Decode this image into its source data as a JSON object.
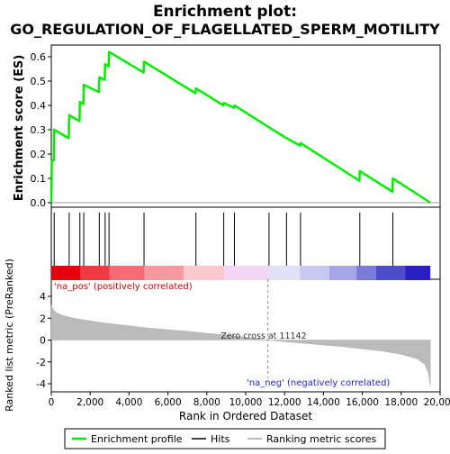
{
  "chart_data": {
    "type": "line",
    "title_line1": "Enrichment plot:",
    "title_line2": "GO_REGULATION_OF_FLAGELLATED_SPERM_MOTILITY",
    "xlabel": "Rank in Ordered Dataset",
    "ylabel_top": "Enrichment score (ES)",
    "ylabel_bottom": "Ranked list metric (PreRanked)",
    "xlim": [
      0,
      20000
    ],
    "x_ticks": [
      0,
      2000,
      4000,
      6000,
      8000,
      10000,
      12000,
      14000,
      16000,
      18000,
      20000
    ],
    "x_tick_labels": [
      "0",
      "2,000",
      "4,000",
      "6,000",
      "8,000",
      "10,000",
      "12,000",
      "14,000",
      "16,000",
      "18,000",
      "20,000"
    ],
    "es_ylim": [
      0,
      0.6
    ],
    "es_ticks": [
      0.0,
      0.1,
      0.2,
      0.3,
      0.4,
      0.5,
      0.6
    ],
    "es_tick_labels": [
      "0.0",
      "0.1",
      "0.2",
      "0.3",
      "0.4",
      "0.5",
      "0.6"
    ],
    "metric_ylim": [
      -4.5,
      5
    ],
    "metric_ticks": [
      -4,
      -2,
      0,
      2,
      4
    ],
    "metric_tick_labels": [
      "-4",
      "-2",
      "0",
      "2",
      "4"
    ],
    "series": [
      {
        "name": "Enrichment profile",
        "color": "#00ee00",
        "points": [
          [
            0,
            0.0
          ],
          [
            30,
            0.17
          ],
          [
            130,
            0.175
          ],
          [
            150,
            0.3
          ],
          [
            900,
            0.265
          ],
          [
            920,
            0.36
          ],
          [
            1450,
            0.335
          ],
          [
            1470,
            0.415
          ],
          [
            1650,
            0.405
          ],
          [
            1670,
            0.485
          ],
          [
            2450,
            0.455
          ],
          [
            2470,
            0.515
          ],
          [
            2750,
            0.505
          ],
          [
            2770,
            0.57
          ],
          [
            2950,
            0.56
          ],
          [
            2970,
            0.62
          ],
          [
            4750,
            0.535
          ],
          [
            4770,
            0.58
          ],
          [
            7420,
            0.45
          ],
          [
            7440,
            0.47
          ],
          [
            8850,
            0.4
          ],
          [
            8870,
            0.41
          ],
          [
            9400,
            0.39
          ],
          [
            9420,
            0.4
          ],
          [
            11200,
            0.31
          ],
          [
            12100,
            0.265
          ],
          [
            12800,
            0.235
          ],
          [
            12820,
            0.245
          ],
          [
            15850,
            0.09
          ],
          [
            15870,
            0.13
          ],
          [
            17550,
            0.045
          ],
          [
            17570,
            0.1
          ],
          [
            19500,
            0.0
          ]
        ]
      }
    ],
    "hits": [
      150,
      920,
      1470,
      1670,
      2470,
      2770,
      2970,
      4770,
      7440,
      8870,
      9420,
      11200,
      12100,
      12820,
      15870,
      17570
    ],
    "heatmap_colors": [
      "#e8000e",
      "#ef3a44",
      "#f36c74",
      "#f7999f",
      "#fbc9cd",
      "#f4d4f4",
      "#e0e0f6",
      "#c8c8f0",
      "#a5a5e8",
      "#7a7ad9",
      "#4d4dc9",
      "#2a1fc0"
    ],
    "heatmap_breaks": [
      0,
      1500,
      3000,
      4800,
      6800,
      8900,
      11142,
      12800,
      14300,
      15700,
      16700,
      18200,
      19500
    ],
    "metric_curve": [
      [
        0,
        3.2
      ],
      [
        100,
        2.8
      ],
      [
        300,
        2.45
      ],
      [
        600,
        2.25
      ],
      [
        1000,
        2.05
      ],
      [
        1500,
        1.9
      ],
      [
        2000,
        1.75
      ],
      [
        3000,
        1.5
      ],
      [
        4000,
        1.3
      ],
      [
        5000,
        1.1
      ],
      [
        6000,
        0.95
      ],
      [
        7000,
        0.8
      ],
      [
        8000,
        0.62
      ],
      [
        9000,
        0.45
      ],
      [
        10000,
        0.25
      ],
      [
        11142,
        0.0
      ],
      [
        12000,
        -0.15
      ],
      [
        13000,
        -0.3
      ],
      [
        14000,
        -0.45
      ],
      [
        15000,
        -0.6
      ],
      [
        16000,
        -0.8
      ],
      [
        17000,
        -1.0
      ],
      [
        18000,
        -1.3
      ],
      [
        18800,
        -1.7
      ],
      [
        19200,
        -2.2
      ],
      [
        19400,
        -3.0
      ],
      [
        19500,
        -4.2
      ]
    ],
    "zero_cross_x": 11142,
    "annotations": {
      "zero_cross": "Zero cross at 11142",
      "pos": "'na_pos' (positively correlated)",
      "neg": "'na_neg' (negatively correlated)"
    },
    "legend": {
      "placement": "bottom",
      "items": [
        "Enrichment profile",
        "Hits",
        "Ranking metric scores"
      ]
    }
  }
}
